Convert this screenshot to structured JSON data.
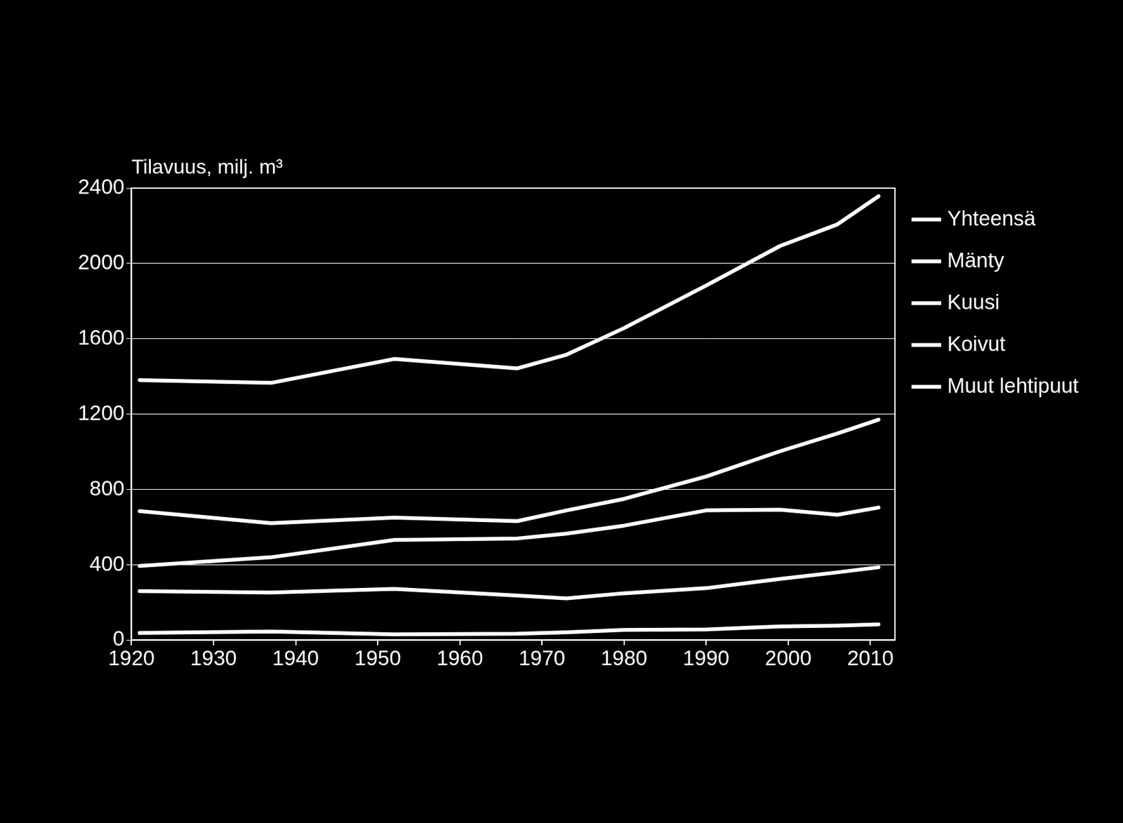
{
  "chart_data": {
    "type": "line",
    "y_label": "Tilavuus, milj. m³",
    "x": [
      1921,
      1937,
      1952,
      1967,
      1973,
      1980,
      1990,
      1999,
      2006,
      2011
    ],
    "series": [
      {
        "name": "Yhteensä",
        "color": "#ffffff",
        "values": [
          1381,
          1366,
          1493,
          1443,
          1516,
          1657,
          1883,
          2093,
          2208,
          2357
        ]
      },
      {
        "name": "Mänty",
        "color": "#ffffff",
        "values": [
          685,
          621,
          651,
          632,
          689,
          750,
          869,
          1003,
          1098,
          1171
        ]
      },
      {
        "name": "Kuusi",
        "color": "#ffffff",
        "values": [
          394,
          440,
          532,
          540,
          566,
          608,
          689,
          693,
          666,
          704
        ]
      },
      {
        "name": "Koivut",
        "color": "#ffffff",
        "values": [
          260,
          253,
          272,
          237,
          222,
          249,
          276,
          325,
          360,
          387
        ]
      },
      {
        "name": "Muut lehtipuut",
        "color": "#ffffff",
        "values": [
          38,
          46,
          31,
          34,
          42,
          54,
          57,
          73,
          77,
          84
        ]
      }
    ],
    "xlim": [
      1920,
      2013
    ],
    "xticks": [
      1920,
      1930,
      1940,
      1950,
      1960,
      1970,
      1980,
      1990,
      2000,
      2010
    ],
    "ylim": [
      0,
      2400
    ],
    "yticks": [
      0,
      400,
      800,
      1200,
      1600,
      2000,
      2400
    ],
    "grid": true,
    "legend": "right"
  }
}
